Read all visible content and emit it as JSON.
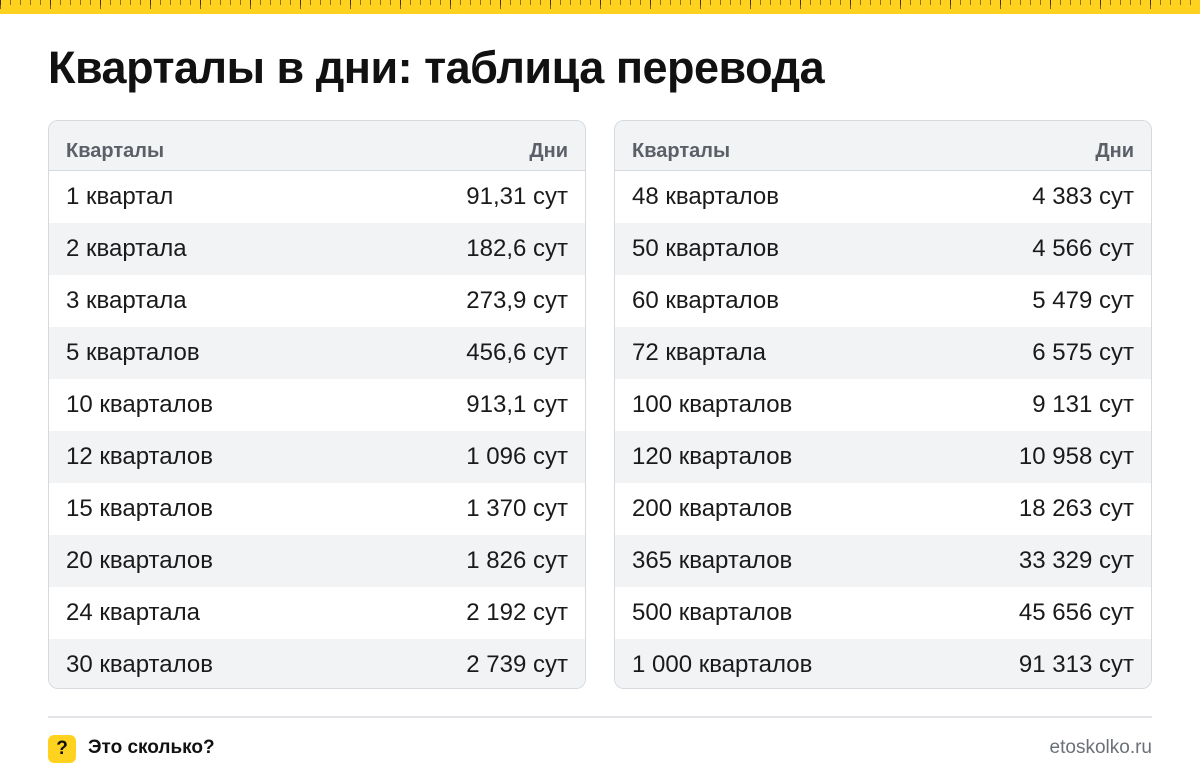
{
  "page": {
    "title": "Кварталы в дни: таблица перевода"
  },
  "tables": [
    {
      "header": {
        "col1": "Кварталы",
        "col2": "Дни"
      },
      "rows": [
        {
          "label": "1 квартал",
          "value": "91,31 сут"
        },
        {
          "label": "2 квартала",
          "value": "182,6 сут"
        },
        {
          "label": "3 квартала",
          "value": "273,9 сут"
        },
        {
          "label": "5 кварталов",
          "value": "456,6 сут"
        },
        {
          "label": "10 кварталов",
          "value": "913,1 сут"
        },
        {
          "label": "12 кварталов",
          "value": "1 096 сут"
        },
        {
          "label": "15 кварталов",
          "value": "1 370 сут"
        },
        {
          "label": "20 кварталов",
          "value": "1 826 сут"
        },
        {
          "label": "24 квартала",
          "value": "2 192 сут"
        },
        {
          "label": "30 кварталов",
          "value": "2 739 сут"
        }
      ]
    },
    {
      "header": {
        "col1": "Кварталы",
        "col2": "Дни"
      },
      "rows": [
        {
          "label": "48 кварталов",
          "value": "4 383 сут"
        },
        {
          "label": "50 кварталов",
          "value": "4 566 сут"
        },
        {
          "label": "60 кварталов",
          "value": "5 479 сут"
        },
        {
          "label": "72 квартала",
          "value": "6 575 сут"
        },
        {
          "label": "100 кварталов",
          "value": "9 131 сут"
        },
        {
          "label": "120 кварталов",
          "value": "10 958 сут"
        },
        {
          "label": "200 кварталов",
          "value": "18 263 сут"
        },
        {
          "label": "365 кварталов",
          "value": "33 329 сут"
        },
        {
          "label": "500 кварталов",
          "value": "45 656 сут"
        },
        {
          "label": "1 000 кварталов",
          "value": "91 313 сут"
        }
      ]
    }
  ],
  "footer": {
    "badge_icon": "question-icon",
    "badge_glyph": "?",
    "label": "Это сколько?",
    "site": "etoskolko.ru"
  },
  "colors": {
    "accent": "#ffd21f",
    "header_bg": "#f2f3f5",
    "border": "#d6d9de"
  }
}
